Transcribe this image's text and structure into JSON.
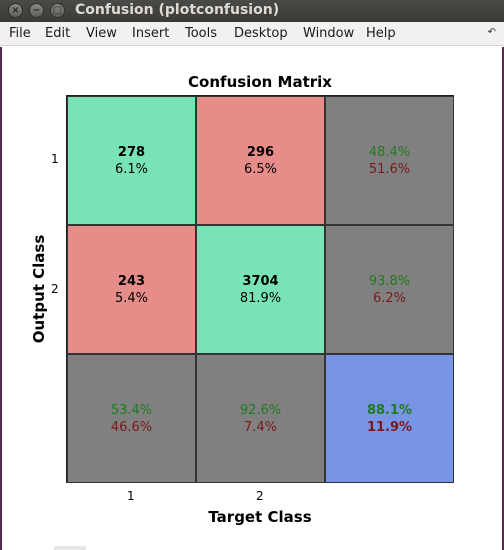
{
  "window": {
    "title": "Confusion (plotconfusion)",
    "buttons": [
      "×",
      "−",
      "□"
    ]
  },
  "menu": [
    "File",
    "Edit",
    "View",
    "Insert",
    "Tools",
    "Desktop",
    "Window",
    "Help"
  ],
  "menu_overflow_icon": "arrow-icon",
  "chart_data": {
    "type": "table",
    "title": "Confusion Matrix",
    "xlabel": "Target Class",
    "ylabel": "Output Class",
    "x_ticks": [
      "1",
      "2"
    ],
    "y_ticks": [
      "1",
      "2"
    ],
    "cells": [
      [
        {
          "count": "278",
          "pct": "6.1%",
          "kind": "correct"
        },
        {
          "count": "296",
          "pct": "6.5%",
          "kind": "error"
        },
        {
          "good": "48.4%",
          "bad": "51.6%",
          "kind": "summary"
        }
      ],
      [
        {
          "count": "243",
          "pct": "5.4%",
          "kind": "error"
        },
        {
          "count": "3704",
          "pct": "81.9%",
          "kind": "correct"
        },
        {
          "good": "93.8%",
          "bad": "6.2%",
          "kind": "summary"
        }
      ],
      [
        {
          "good": "53.4%",
          "bad": "46.6%",
          "kind": "summary"
        },
        {
          "good": "92.6%",
          "bad": "7.4%",
          "kind": "summary"
        },
        {
          "good": "88.1%",
          "bad": "11.9%",
          "kind": "total"
        }
      ]
    ],
    "colors": {
      "correct": "#78e4b6",
      "error": "#e68d8a",
      "summary": "#808080",
      "total": "#7894e4",
      "good_text": "#1f7a1f",
      "bad_text": "#7a1a1a"
    }
  }
}
